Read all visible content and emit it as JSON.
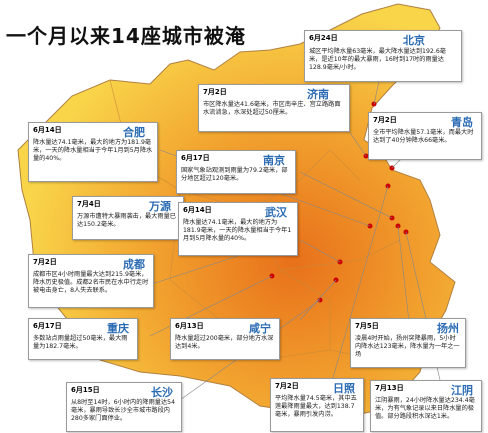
{
  "title": "一个月以来14座城市被淹",
  "colors": {
    "map_outer": "#f9d24a",
    "map_inner": "#e87a1e",
    "map_border": "#999999",
    "city_name": "#2b6bb3",
    "flood_dot": "#cc0000"
  },
  "cards": [
    {
      "id": "beijing",
      "date": "6月24日",
      "city": "北京",
      "desc": "城区平均降水量63毫米，最大降水量达到192.6毫米，是近10年的最大暴雨，16时到17时的雨量达128.9毫米/小时。"
    },
    {
      "id": "jinan",
      "date": "7月2日",
      "city": "济南",
      "desc": "市区降水量达41.6毫米，市区南辛庄、宫立路路面水流淌急，水深处超过50厘米。"
    },
    {
      "id": "hefei",
      "date": "6月14日",
      "city": "合肥",
      "desc": "降水量达74.1毫米，最大的地方为181.9毫米，一天的降水量相当于今年1月到5月降水量的40%。"
    },
    {
      "id": "qingdao",
      "date": "7月2日",
      "city": "青岛",
      "desc": "全市平均降水量57.1毫米，而最大时达到了40分钟降水66毫米。"
    },
    {
      "id": "nanjing",
      "date": "6月17日",
      "city": "南京",
      "desc": "国家气象站观测到雨量为79.2毫米，部分地区超过120毫米。"
    },
    {
      "id": "wanyuan",
      "date": "7月4日",
      "city": "万源",
      "desc": "万源市遭特大暴雨袭击，最大雨量已达150.2毫米。"
    },
    {
      "id": "wuhan",
      "date": "6月14日",
      "city": "武汉",
      "desc": "降水量达74.1毫米，最大的地方为181.9毫米，一天的降水量相当于今年1月到5月降水量的40%。"
    },
    {
      "id": "chengdu",
      "date": "7月2日",
      "city": "成都",
      "desc": "成都市区4小时雨量最大达到215.9毫米，降水历史极值。成都2名市民在水中行走时被电击身亡，8人失去联系。"
    },
    {
      "id": "chongqing",
      "date": "6月17日",
      "city": "重庆",
      "desc": "多数站点雨量超过50毫米，最大雨量为182.7毫米。"
    },
    {
      "id": "xianning",
      "date": "6月13日",
      "city": "咸宁",
      "desc": "降水量超过200毫米，部分地方水深达到4米。"
    },
    {
      "id": "yangzhou",
      "date": "7月5日",
      "city": "扬州",
      "desc": "凌晨4时开始，扬州突降暴雨，5小时内降水达123毫米，降水量为一年之一场"
    },
    {
      "id": "changsha",
      "date": "6月15日",
      "city": "长沙",
      "desc": "从8时至14时，6小时内的降雨量达54毫米，暴雨导致长沙全市城市路段内280多家门面停业。"
    },
    {
      "id": "rizhao",
      "date": "7月2日",
      "city": "日照",
      "desc": "平均降水量74.5毫米，其中五莲最降雨量最大，达到138.7毫米，暴雨引发内涝。"
    },
    {
      "id": "jiangyin",
      "date": "7月13日",
      "city": "江阴",
      "desc": "江阴暴雨，24小时降水量达234.4毫米，为有气象记录以来日降水量的极值。部分路段积水深达1米。"
    }
  ]
}
